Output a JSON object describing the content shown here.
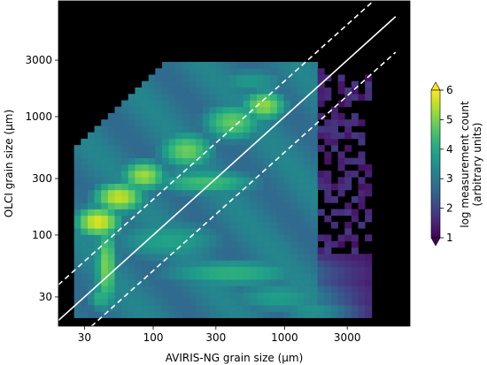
{
  "chart_data": {
    "type": "heatmap",
    "xlabel": "AVIRIS-NG grain size (μm)",
    "ylabel": "OLCI grain size (μm)",
    "x_scale": "log",
    "y_scale": "log",
    "xlim": [
      19,
      9000
    ],
    "ylim": [
      17,
      9500
    ],
    "x_ticks": [
      30,
      100,
      300,
      1000,
      3000
    ],
    "x_tick_labels": [
      "30",
      "100",
      "300",
      "1000",
      "3000"
    ],
    "y_ticks": [
      30,
      100,
      300,
      1000,
      3000
    ],
    "y_tick_labels": [
      "30",
      "100",
      "300",
      "1000",
      "3000"
    ],
    "background_color": "#000000",
    "colormap": "viridis",
    "colorbar": {
      "label_line1": "log measurement count",
      "label_line2": "(arbitrary units)",
      "min": 1,
      "max": 6,
      "ticks": [
        1,
        2,
        3,
        4,
        5,
        6
      ],
      "tick_labels": [
        "1",
        "2",
        "3",
        "4",
        "5",
        "6"
      ],
      "extend": "both",
      "extend_max_color": "#fde725",
      "extend_min_color": "#440154"
    },
    "reference_lines": [
      {
        "name": "1:1",
        "style": "solid",
        "ratio": 1,
        "color": "#ffffff"
      },
      {
        "name": "x2",
        "style": "dashed",
        "ratio": 2,
        "color": "#ffffff"
      },
      {
        "name": "x0.5",
        "style": "dashed",
        "ratio": 0.5,
        "color": "#ffffff"
      }
    ],
    "density_data_extent": {
      "x": [
        25,
        4600
      ],
      "y": [
        20,
        2900
      ]
    },
    "density_features": [
      {
        "x": 38,
        "y": 130,
        "value": 5.8,
        "spread_x": 0.16,
        "spread_y": 0.12,
        "note": "dense vertical core"
      },
      {
        "x": 44,
        "y": 55,
        "value": 5.0,
        "spread_x": 0.08,
        "spread_y": 0.35
      },
      {
        "x": 40,
        "y": 30,
        "value": 4.2,
        "spread_x": 0.1,
        "spread_y": 0.12
      },
      {
        "x": 55,
        "y": 210,
        "value": 5.6,
        "spread_x": 0.18,
        "spread_y": 0.12
      },
      {
        "x": 85,
        "y": 320,
        "value": 5.3,
        "spread_x": 0.16,
        "spread_y": 0.12
      },
      {
        "x": 180,
        "y": 520,
        "value": 4.9,
        "spread_x": 0.2,
        "spread_y": 0.15
      },
      {
        "x": 400,
        "y": 900,
        "value": 4.8,
        "spread_x": 0.22,
        "spread_y": 0.15
      },
      {
        "x": 700,
        "y": 1250,
        "value": 5.2,
        "spread_x": 0.16,
        "spread_y": 0.12
      },
      {
        "x": 550,
        "y": 2000,
        "value": 3.7,
        "spread_x": 0.3,
        "spread_y": 0.12
      },
      {
        "x": 250,
        "y": 280,
        "value": 4.5,
        "spread_x": 0.4,
        "spread_y": 0.1,
        "note": "horizontal ridge near 300"
      },
      {
        "x": 130,
        "y": 90,
        "value": 3.9,
        "spread_x": 0.45,
        "spread_y": 0.18
      },
      {
        "x": 400,
        "y": 48,
        "value": 4.2,
        "spread_x": 0.55,
        "spread_y": 0.12,
        "note": "diagonal lower branch"
      },
      {
        "x": 900,
        "y": 30,
        "value": 3.8,
        "spread_x": 0.4,
        "spread_y": 0.14
      },
      {
        "x": 1600,
        "y": 23,
        "value": 3.6,
        "spread_x": 0.28,
        "spread_y": 0.1
      }
    ],
    "density_floor_value": 3.0
  }
}
